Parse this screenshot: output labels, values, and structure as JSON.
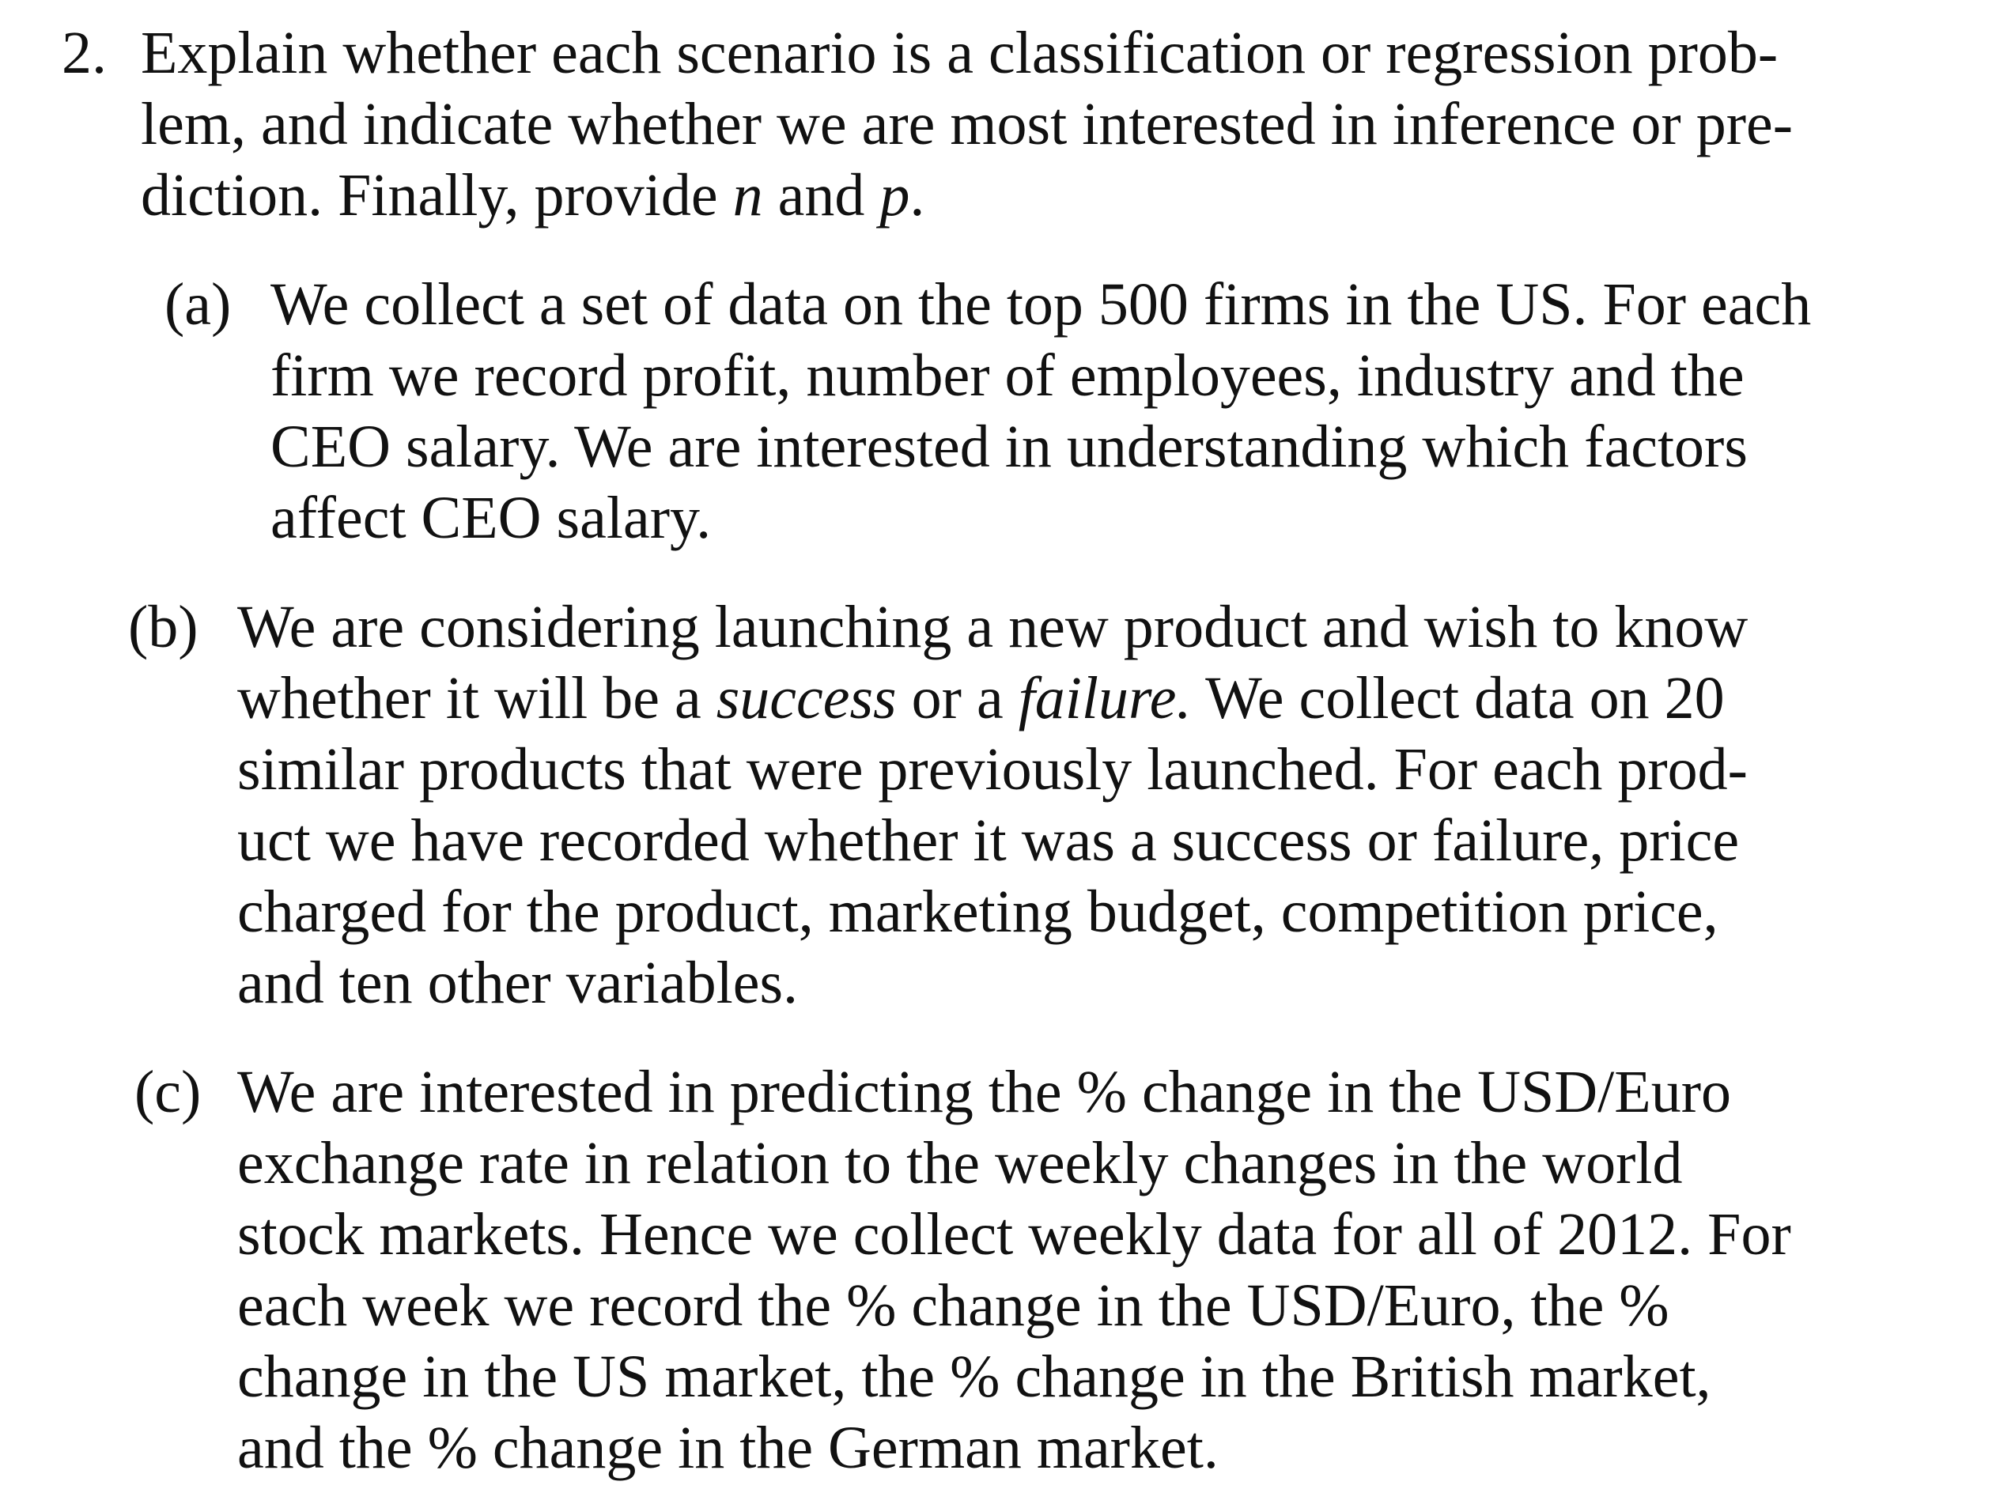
{
  "question": {
    "number": "2.",
    "lines": [
      "Explain whether each scenario is a classification or regression prob-",
      "lem, and indicate whether we are most interested in inference or pre-"
    ],
    "line3_prefix": "diction. Finally, provide ",
    "var_n": "n",
    "line3_mid": " and ",
    "var_p": "p",
    "line3_suffix": "."
  },
  "part_a": {
    "label": "(a)",
    "lines": [
      "We collect a set of data on the top 500 firms in the US. For each",
      "firm we record profit, number of employees, industry and the",
      "CEO salary. We are interested in understanding which factors",
      "affect CEO salary."
    ]
  },
  "part_b": {
    "label": "(b)",
    "line1": "We are considering launching a new product and wish to know",
    "line2_prefix": "whether it will be a ",
    "success_word": "success",
    "line2_mid": " or a ",
    "failure_word": "failure.",
    "line2_suffix": " We collect data on 20",
    "lines_rest": [
      "similar products that were previously launched. For each prod-",
      "uct we have recorded whether it was a success or failure, price",
      "charged for the product, marketing budget, competition price,",
      "and ten other variables."
    ]
  },
  "part_c": {
    "label": "(c)",
    "lines": [
      "We are interested in predicting the % change in the USD/Euro",
      "exchange rate in relation to the weekly changes in the world",
      "stock markets. Hence we collect weekly data for all of 2012. For",
      "each week we record the % change in the USD/Euro, the %",
      "change in the US market, the % change in the British market,",
      "and the % change in the German market."
    ]
  }
}
